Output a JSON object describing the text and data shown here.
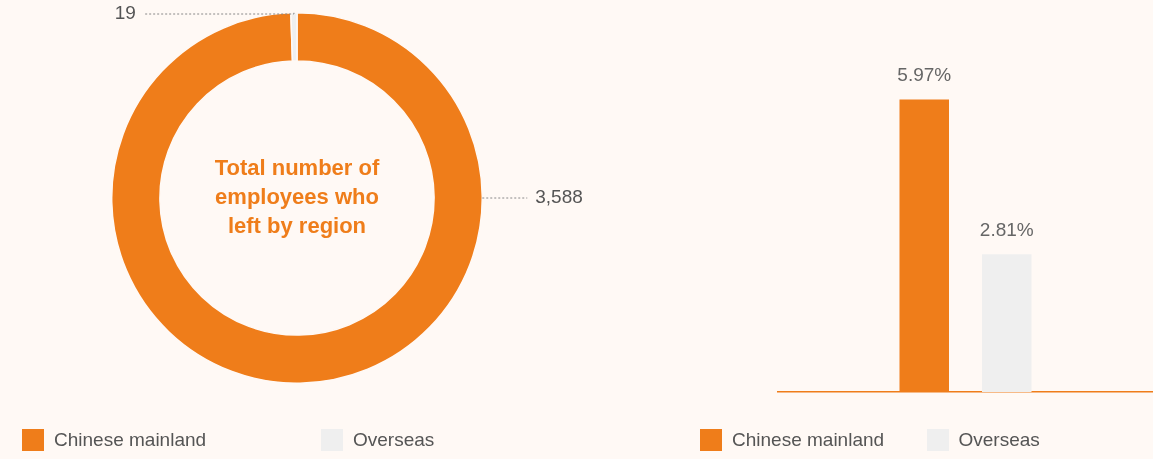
{
  "chart_data": [
    {
      "type": "donut",
      "title": "Total number of employees who left by region",
      "categories": [
        "Chinese mainland",
        "Overseas"
      ],
      "values": [
        3588,
        19
      ],
      "colors": [
        "#ef7d1a",
        "#efefef"
      ],
      "value_labels": [
        "3,588",
        "19"
      ],
      "legend": "bottom left"
    },
    {
      "type": "bar",
      "categories": [
        null
      ],
      "series": [
        {
          "name": "Chinese mainland",
          "color": "#ef7d1a",
          "values": [
            5.97
          ],
          "value_labels": [
            "5.97%"
          ]
        },
        {
          "name": "Overseas",
          "color": "#efefef",
          "values": [
            2.81
          ],
          "value_labels": [
            "2.81%"
          ]
        }
      ],
      "legend": "bottom left"
    }
  ]
}
